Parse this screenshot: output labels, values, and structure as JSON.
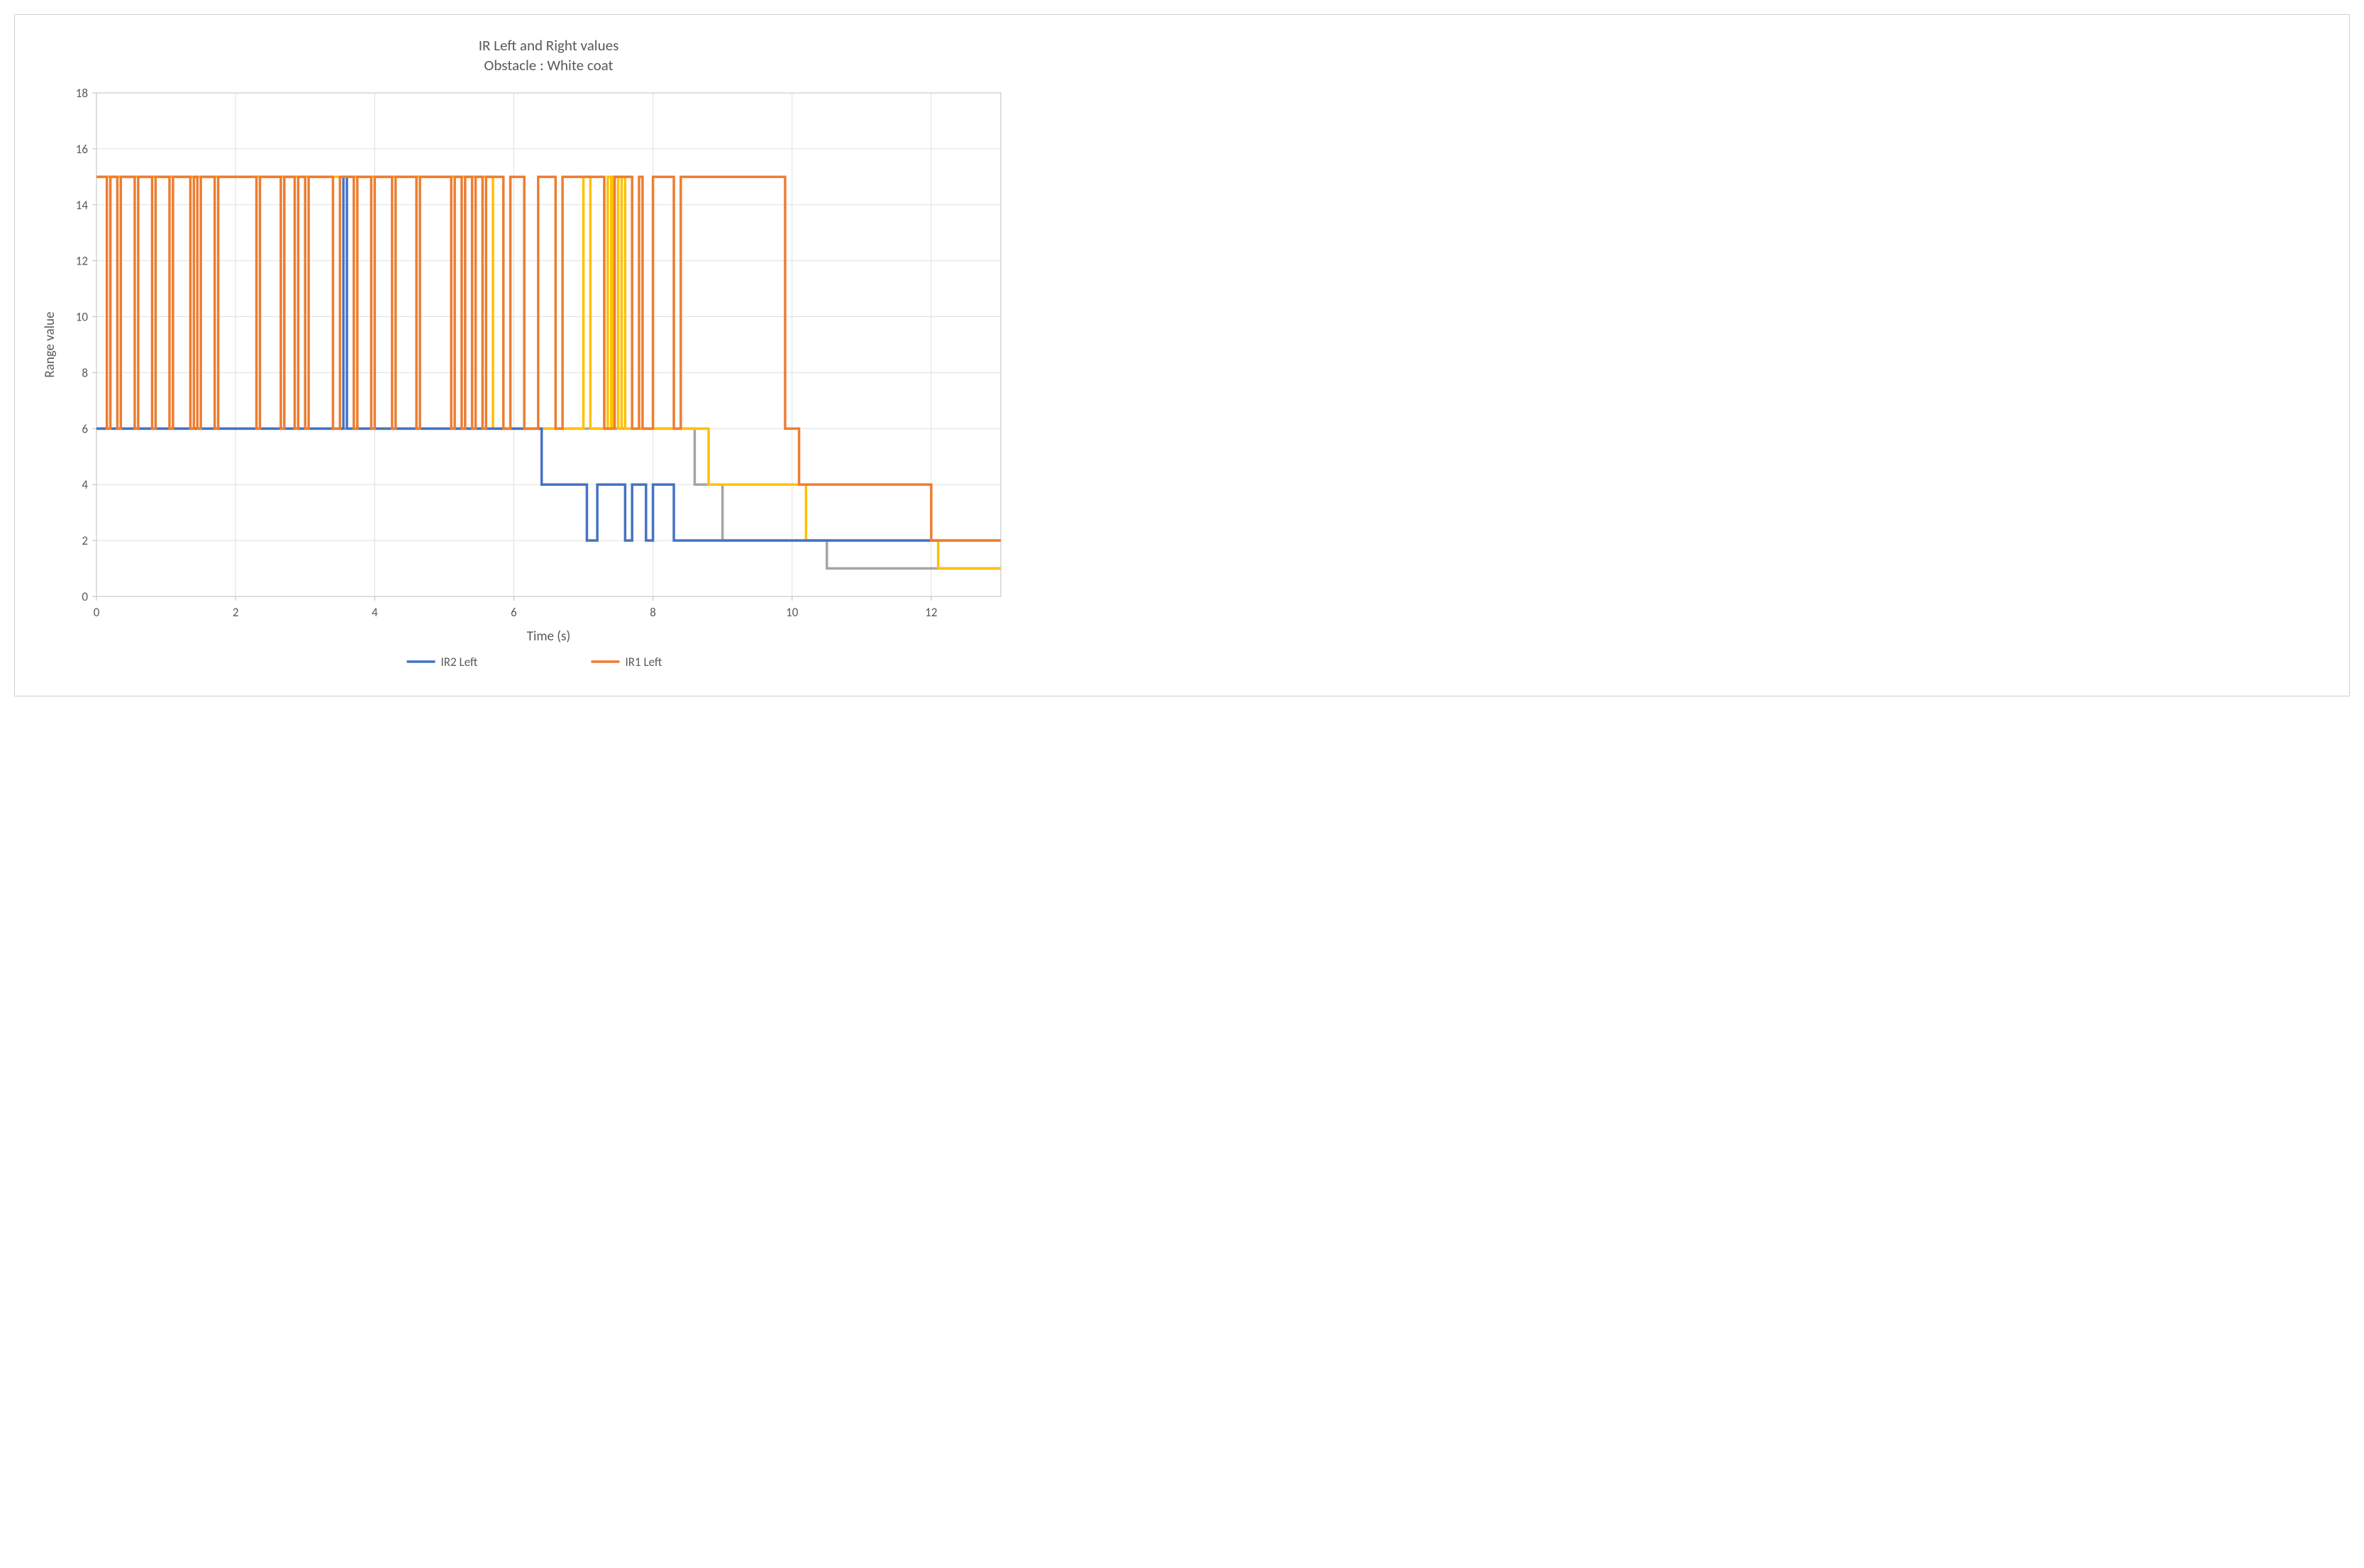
{
  "chart": {
    "type": "line_step",
    "title_line1": "IR Left and Right values",
    "title_line2": "Obstacle : White coat",
    "title_fontsize": 21,
    "xlabel": "Time (s)",
    "ylabel": "Range value",
    "label_fontsize": 19,
    "tick_fontsize": 17,
    "legend_fontsize": 17,
    "xlim": [
      0,
      13
    ],
    "ylim": [
      0,
      18
    ],
    "xticks": [
      0,
      2,
      4,
      6,
      8,
      10,
      12
    ],
    "yticks": [
      0,
      2,
      4,
      6,
      8,
      10,
      12,
      14,
      16,
      18
    ],
    "background_color": "#ffffff",
    "border_color": "#d0d0d0",
    "grid_color": "#e0e0e0",
    "axis_color": "#bfbfbf",
    "text_color": "#595959",
    "line_width": 3.5,
    "series": [
      {
        "name": "grey",
        "label": null,
        "color": "#a5a5a5",
        "points": [
          [
            0,
            6
          ],
          [
            6.5,
            6
          ],
          [
            6.5,
            6
          ],
          [
            8.6,
            6
          ],
          [
            8.6,
            4
          ],
          [
            9.0,
            4
          ],
          [
            9.0,
            2
          ],
          [
            10.5,
            2
          ],
          [
            10.5,
            1
          ],
          [
            12.4,
            1
          ],
          [
            12.4,
            1
          ],
          [
            13,
            1
          ]
        ]
      },
      {
        "name": "yellow",
        "label": null,
        "color": "#ffc000",
        "points": [
          [
            0,
            15
          ],
          [
            5.7,
            15
          ],
          [
            5.7,
            6
          ],
          [
            7.0,
            6
          ],
          [
            7.0,
            15
          ],
          [
            7.1,
            15
          ],
          [
            7.1,
            6
          ],
          [
            7.35,
            6
          ],
          [
            7.35,
            15
          ],
          [
            7.4,
            15
          ],
          [
            7.4,
            6
          ],
          [
            7.42,
            6
          ],
          [
            7.42,
            15
          ],
          [
            7.5,
            15
          ],
          [
            7.5,
            6
          ],
          [
            7.55,
            6
          ],
          [
            7.55,
            15
          ],
          [
            7.6,
            15
          ],
          [
            7.6,
            6
          ],
          [
            8.8,
            6
          ],
          [
            8.8,
            4
          ],
          [
            10.2,
            4
          ],
          [
            10.2,
            2
          ],
          [
            12.1,
            2
          ],
          [
            12.1,
            1
          ],
          [
            13,
            1
          ]
        ]
      },
      {
        "name": "IR2 Left",
        "label": "IR2 Left",
        "color": "#4472c4",
        "points": [
          [
            0,
            6
          ],
          [
            3.55,
            6
          ],
          [
            3.55,
            15
          ],
          [
            3.6,
            15
          ],
          [
            3.6,
            6
          ],
          [
            6.4,
            6
          ],
          [
            6.4,
            4
          ],
          [
            7.05,
            4
          ],
          [
            7.05,
            2
          ],
          [
            7.2,
            2
          ],
          [
            7.2,
            4
          ],
          [
            7.6,
            4
          ],
          [
            7.6,
            2
          ],
          [
            7.7,
            2
          ],
          [
            7.7,
            4
          ],
          [
            7.9,
            4
          ],
          [
            7.9,
            2
          ],
          [
            8.0,
            2
          ],
          [
            8.0,
            4
          ],
          [
            8.3,
            4
          ],
          [
            8.3,
            2
          ],
          [
            13,
            2
          ]
        ]
      },
      {
        "name": "IR1 Left",
        "label": "IR1 Left",
        "color": "#ed7d31",
        "points": [
          [
            0,
            15
          ],
          [
            0.15,
            15
          ],
          [
            0.15,
            6
          ],
          [
            0.2,
            6
          ],
          [
            0.2,
            15
          ],
          [
            0.3,
            15
          ],
          [
            0.3,
            6
          ],
          [
            0.35,
            6
          ],
          [
            0.35,
            15
          ],
          [
            0.55,
            15
          ],
          [
            0.55,
            6
          ],
          [
            0.6,
            6
          ],
          [
            0.6,
            15
          ],
          [
            0.8,
            15
          ],
          [
            0.8,
            6
          ],
          [
            0.85,
            6
          ],
          [
            0.85,
            15
          ],
          [
            1.05,
            15
          ],
          [
            1.05,
            6
          ],
          [
            1.1,
            6
          ],
          [
            1.1,
            15
          ],
          [
            1.35,
            15
          ],
          [
            1.35,
            6
          ],
          [
            1.4,
            6
          ],
          [
            1.4,
            15
          ],
          [
            1.45,
            15
          ],
          [
            1.45,
            6
          ],
          [
            1.5,
            6
          ],
          [
            1.5,
            15
          ],
          [
            1.7,
            15
          ],
          [
            1.7,
            6
          ],
          [
            1.75,
            6
          ],
          [
            1.75,
            15
          ],
          [
            2.3,
            15
          ],
          [
            2.3,
            6
          ],
          [
            2.35,
            6
          ],
          [
            2.35,
            15
          ],
          [
            2.65,
            15
          ],
          [
            2.65,
            6
          ],
          [
            2.7,
            6
          ],
          [
            2.7,
            15
          ],
          [
            2.85,
            15
          ],
          [
            2.85,
            6
          ],
          [
            2.9,
            6
          ],
          [
            2.9,
            15
          ],
          [
            3.0,
            15
          ],
          [
            3.0,
            6
          ],
          [
            3.05,
            6
          ],
          [
            3.05,
            15
          ],
          [
            3.4,
            15
          ],
          [
            3.4,
            6
          ],
          [
            3.5,
            6
          ],
          [
            3.5,
            15
          ],
          [
            3.7,
            15
          ],
          [
            3.7,
            6
          ],
          [
            3.75,
            6
          ],
          [
            3.75,
            15
          ],
          [
            3.95,
            15
          ],
          [
            3.95,
            6
          ],
          [
            4.0,
            6
          ],
          [
            4.0,
            15
          ],
          [
            4.25,
            15
          ],
          [
            4.25,
            6
          ],
          [
            4.3,
            6
          ],
          [
            4.3,
            15
          ],
          [
            4.6,
            15
          ],
          [
            4.6,
            6
          ],
          [
            4.65,
            6
          ],
          [
            4.65,
            15
          ],
          [
            5.1,
            15
          ],
          [
            5.1,
            6
          ],
          [
            5.15,
            6
          ],
          [
            5.15,
            15
          ],
          [
            5.25,
            15
          ],
          [
            5.25,
            6
          ],
          [
            5.3,
            6
          ],
          [
            5.3,
            15
          ],
          [
            5.4,
            15
          ],
          [
            5.4,
            6
          ],
          [
            5.45,
            6
          ],
          [
            5.45,
            15
          ],
          [
            5.55,
            15
          ],
          [
            5.55,
            6
          ],
          [
            5.6,
            6
          ],
          [
            5.6,
            15
          ],
          [
            5.85,
            15
          ],
          [
            5.85,
            6
          ],
          [
            5.95,
            6
          ],
          [
            5.95,
            15
          ],
          [
            6.15,
            15
          ],
          [
            6.15,
            6
          ],
          [
            6.35,
            6
          ],
          [
            6.35,
            15
          ],
          [
            6.6,
            15
          ],
          [
            6.6,
            6
          ],
          [
            6.7,
            6
          ],
          [
            6.7,
            15
          ],
          [
            7.3,
            15
          ],
          [
            7.3,
            6
          ],
          [
            7.45,
            6
          ],
          [
            7.45,
            15
          ],
          [
            7.7,
            15
          ],
          [
            7.7,
            6
          ],
          [
            7.8,
            6
          ],
          [
            7.8,
            15
          ],
          [
            7.85,
            15
          ],
          [
            7.85,
            6
          ],
          [
            8.0,
            6
          ],
          [
            8.0,
            15
          ],
          [
            8.3,
            15
          ],
          [
            8.3,
            6
          ],
          [
            8.4,
            6
          ],
          [
            8.4,
            15
          ],
          [
            9.9,
            15
          ],
          [
            9.9,
            6
          ],
          [
            10.1,
            6
          ],
          [
            10.1,
            4
          ],
          [
            12.0,
            4
          ],
          [
            12.0,
            2
          ],
          [
            13,
            2
          ]
        ]
      }
    ],
    "legend": [
      {
        "label": "IR2 Left",
        "color": "#4472c4"
      },
      {
        "label": "IR1 Left",
        "color": "#ed7d31"
      }
    ]
  }
}
